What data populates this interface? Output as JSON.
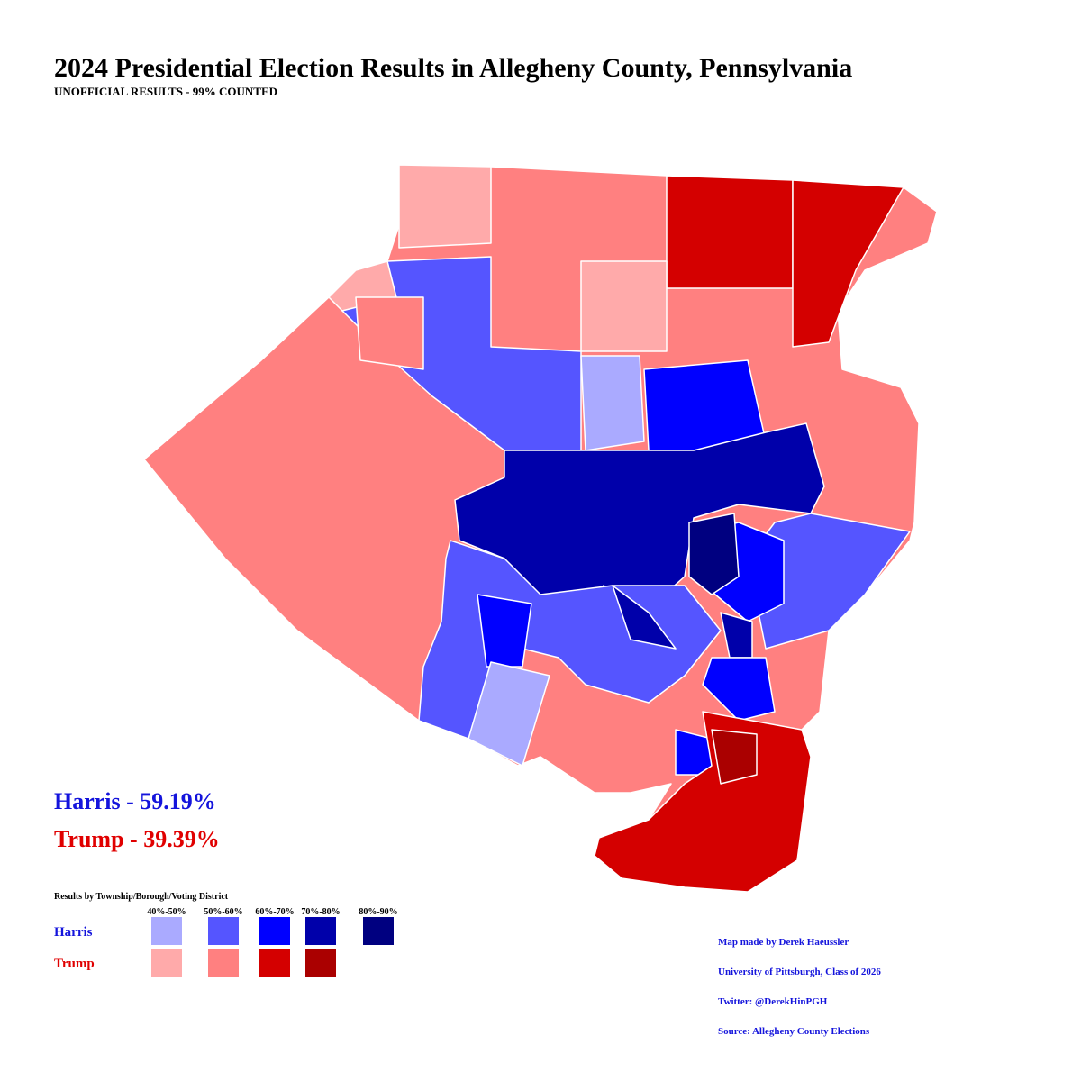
{
  "header": {
    "title": "2024 Presidential Election Results in Allegheny County, Pennsylvania",
    "subtitle": "UNOFFICIAL RESULTS - 99% COUNTED"
  },
  "totals": [
    {
      "label": "Harris - 59.19%",
      "color": "#1414dc"
    },
    {
      "label": "Trump - 39.39%",
      "color": "#e00000"
    }
  ],
  "legend": {
    "title": "Results by Township/Borough/Voting District",
    "ranges": [
      "40%-50%",
      "50%-60%",
      "60%-70%",
      "70%-80%",
      "80%-90%"
    ],
    "rows": [
      {
        "name": "Harris",
        "color": "#1414dc",
        "swatches": [
          "#aaaaff",
          "#5555ff",
          "#0000ff",
          "#0000aa",
          "#000080"
        ]
      },
      {
        "name": "Trump",
        "color": "#e00000",
        "swatches": [
          "#ffaaaa",
          "#ff8080",
          "#d40000",
          "#aa0000"
        ]
      }
    ]
  },
  "credits": [
    "Map made by Derek Haeussler",
    "University of Pittsburgh, Class of 2026",
    "Twitter: @DerekHinPGH",
    "Source: Allegheny County Elections"
  ]
}
